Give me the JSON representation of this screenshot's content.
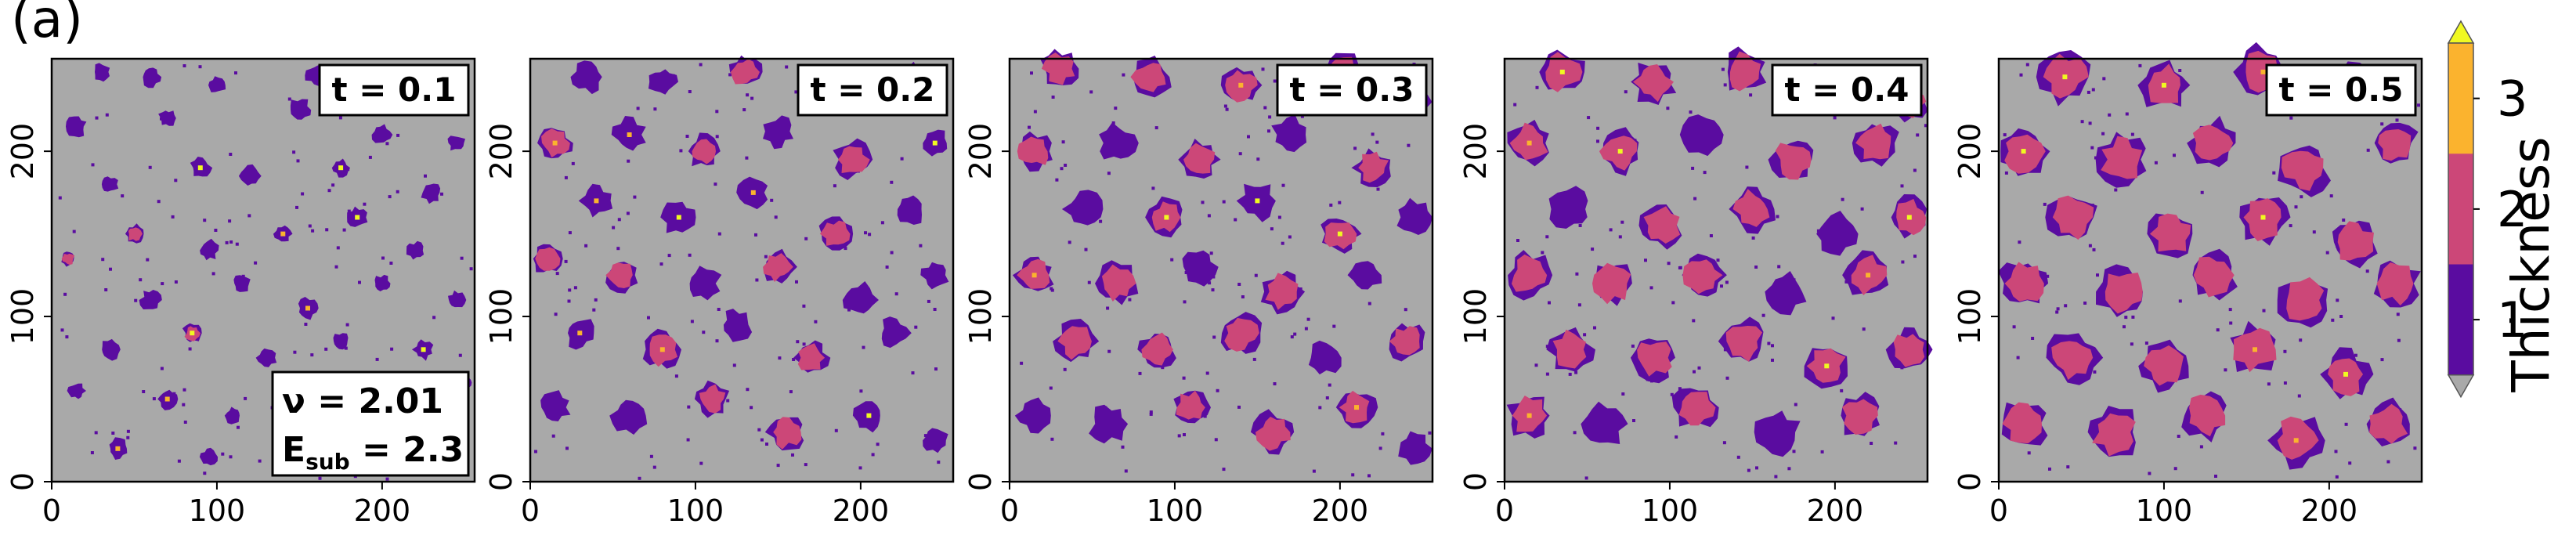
{
  "figure": {
    "panel_label": "(a)"
  },
  "chart_data": {
    "type": "heatmap",
    "description_free": true,
    "xlim": [
      0,
      256
    ],
    "ylim": [
      0,
      256
    ],
    "xticks": [
      0,
      100,
      200
    ],
    "yticks": [
      0,
      100,
      200
    ],
    "panels": [
      {
        "time_label": "t = 0.1",
        "t": 0.1,
        "annotation": {
          "nu": "ν = 2.01",
          "e_sub": "E",
          "e_sub_sub": "sub",
          "e_sub_val": " = 2.3"
        }
      },
      {
        "time_label": "t = 0.2",
        "t": 0.2
      },
      {
        "time_label": "t = 0.3",
        "t": 0.3
      },
      {
        "time_label": "t = 0.4",
        "t": 0.4
      },
      {
        "time_label": "t = 0.5",
        "t": 0.5
      }
    ],
    "colorbar": {
      "label": "Thickness",
      "ticks": [
        "1",
        "2",
        "3"
      ],
      "levels": [
        {
          "value": 0,
          "color": "#a9a9a9"
        },
        {
          "value": 1,
          "color": "#5a0ca0"
        },
        {
          "value": 2,
          "color": "#cc4778"
        },
        {
          "value": 3,
          "color": "#fbb32e"
        },
        {
          "value": 4,
          "color": "#f0f921"
        }
      ],
      "extend": "both"
    },
    "islands": {
      "0.1": [
        [
          30,
          248,
          5,
          0
        ],
        [
          60,
          245,
          6,
          0
        ],
        [
          100,
          240,
          5,
          0
        ],
        [
          160,
          246,
          6,
          0
        ],
        [
          220,
          240,
          5,
          0
        ],
        [
          15,
          215,
          6,
          0
        ],
        [
          70,
          220,
          5,
          0
        ],
        [
          90,
          190,
          6,
          0
        ],
        [
          150,
          225,
          7,
          0
        ],
        [
          200,
          210,
          6,
          0
        ],
        [
          245,
          205,
          5,
          0
        ],
        [
          35,
          180,
          5,
          0
        ],
        [
          120,
          185,
          6,
          0
        ],
        [
          175,
          190,
          5,
          0
        ],
        [
          230,
          175,
          6,
          0
        ],
        [
          50,
          150,
          5,
          1
        ],
        [
          95,
          140,
          6,
          0
        ],
        [
          140,
          150,
          5,
          0
        ],
        [
          185,
          160,
          6,
          0
        ],
        [
          220,
          140,
          5,
          0
        ],
        [
          10,
          135,
          4,
          1
        ],
        [
          60,
          110,
          6,
          0
        ],
        [
          115,
          120,
          5,
          0
        ],
        [
          155,
          105,
          6,
          0
        ],
        [
          200,
          120,
          5,
          0
        ],
        [
          245,
          110,
          5,
          0
        ],
        [
          35,
          80,
          6,
          0
        ],
        [
          85,
          90,
          5,
          1
        ],
        [
          130,
          75,
          6,
          0
        ],
        [
          175,
          85,
          5,
          0
        ],
        [
          225,
          80,
          6,
          0
        ],
        [
          15,
          55,
          5,
          0
        ],
        [
          70,
          50,
          6,
          0
        ],
        [
          110,
          40,
          5,
          0
        ],
        [
          150,
          55,
          5,
          0
        ],
        [
          200,
          45,
          5,
          0
        ],
        [
          40,
          20,
          6,
          0
        ],
        [
          95,
          15,
          5,
          0
        ],
        [
          250,
          60,
          5,
          0
        ]
      ],
      "0.2": [
        [
          35,
          245,
          9,
          0
        ],
        [
          80,
          242,
          8,
          0
        ],
        [
          130,
          248,
          9,
          1
        ],
        [
          175,
          238,
          9,
          0
        ],
        [
          230,
          245,
          8,
          0
        ],
        [
          15,
          205,
          9,
          1
        ],
        [
          60,
          210,
          10,
          0
        ],
        [
          105,
          200,
          9,
          1
        ],
        [
          150,
          212,
          9,
          0
        ],
        [
          195,
          195,
          10,
          1
        ],
        [
          245,
          205,
          8,
          0
        ],
        [
          40,
          170,
          9,
          0
        ],
        [
          90,
          160,
          10,
          0
        ],
        [
          135,
          175,
          9,
          0
        ],
        [
          185,
          150,
          9,
          1
        ],
        [
          230,
          165,
          9,
          0
        ],
        [
          10,
          135,
          8,
          1
        ],
        [
          55,
          125,
          9,
          1
        ],
        [
          105,
          120,
          10,
          0
        ],
        [
          150,
          130,
          9,
          1
        ],
        [
          200,
          110,
          10,
          0
        ],
        [
          245,
          125,
          8,
          0
        ],
        [
          30,
          90,
          9,
          0
        ],
        [
          80,
          80,
          10,
          1
        ],
        [
          125,
          95,
          9,
          0
        ],
        [
          170,
          75,
          9,
          1
        ],
        [
          220,
          90,
          9,
          0
        ],
        [
          15,
          45,
          9,
          0
        ],
        [
          60,
          40,
          10,
          0
        ],
        [
          110,
          50,
          9,
          1
        ],
        [
          155,
          30,
          10,
          1
        ],
        [
          205,
          40,
          9,
          0
        ],
        [
          245,
          25,
          8,
          0
        ]
      ],
      "0.3": [
        [
          30,
          250,
          10,
          1
        ],
        [
          85,
          245,
          11,
          1
        ],
        [
          140,
          240,
          10,
          1
        ],
        [
          200,
          248,
          11,
          1
        ],
        [
          245,
          235,
          10,
          0
        ],
        [
          15,
          200,
          10,
          1
        ],
        [
          65,
          205,
          11,
          0
        ],
        [
          115,
          195,
          10,
          1
        ],
        [
          170,
          210,
          11,
          0
        ],
        [
          220,
          190,
          10,
          1
        ],
        [
          45,
          165,
          11,
          0
        ],
        [
          95,
          160,
          10,
          1
        ],
        [
          150,
          170,
          11,
          0
        ],
        [
          200,
          150,
          10,
          1
        ],
        [
          245,
          160,
          10,
          0
        ],
        [
          15,
          125,
          10,
          1
        ],
        [
          65,
          120,
          11,
          1
        ],
        [
          115,
          130,
          10,
          0
        ],
        [
          165,
          115,
          11,
          1
        ],
        [
          215,
          125,
          10,
          0
        ],
        [
          40,
          85,
          11,
          1
        ],
        [
          90,
          80,
          10,
          1
        ],
        [
          140,
          90,
          11,
          1
        ],
        [
          190,
          75,
          10,
          0
        ],
        [
          240,
          85,
          10,
          1
        ],
        [
          15,
          40,
          10,
          0
        ],
        [
          60,
          35,
          11,
          0
        ],
        [
          110,
          45,
          10,
          1
        ],
        [
          160,
          30,
          11,
          1
        ],
        [
          210,
          45,
          10,
          1
        ],
        [
          245,
          20,
          9,
          0
        ]
      ],
      "0.4": [
        [
          35,
          248,
          12,
          1
        ],
        [
          90,
          242,
          12,
          1
        ],
        [
          145,
          248,
          12,
          1
        ],
        [
          200,
          240,
          12,
          1
        ],
        [
          245,
          230,
          10,
          1
        ],
        [
          15,
          205,
          12,
          1
        ],
        [
          70,
          200,
          12,
          1
        ],
        [
          120,
          210,
          12,
          0
        ],
        [
          175,
          195,
          12,
          1
        ],
        [
          225,
          205,
          12,
          1
        ],
        [
          40,
          165,
          12,
          0
        ],
        [
          95,
          155,
          12,
          1
        ],
        [
          150,
          165,
          12,
          1
        ],
        [
          200,
          150,
          12,
          0
        ],
        [
          245,
          160,
          11,
          1
        ],
        [
          15,
          125,
          12,
          1
        ],
        [
          65,
          120,
          12,
          1
        ],
        [
          120,
          125,
          12,
          1
        ],
        [
          170,
          115,
          12,
          0
        ],
        [
          220,
          125,
          12,
          1
        ],
        [
          40,
          80,
          12,
          1
        ],
        [
          90,
          75,
          12,
          1
        ],
        [
          145,
          85,
          12,
          1
        ],
        [
          195,
          70,
          12,
          1
        ],
        [
          245,
          80,
          11,
          1
        ],
        [
          15,
          40,
          12,
          1
        ],
        [
          60,
          35,
          13,
          0
        ],
        [
          115,
          45,
          12,
          1
        ],
        [
          165,
          30,
          13,
          0
        ],
        [
          215,
          40,
          12,
          1
        ]
      ],
      "0.5": [
        [
          40,
          245,
          14,
          1
        ],
        [
          100,
          240,
          13,
          1
        ],
        [
          160,
          248,
          14,
          1
        ],
        [
          215,
          238,
          13,
          1
        ],
        [
          15,
          200,
          13,
          1
        ],
        [
          75,
          195,
          14,
          1
        ],
        [
          130,
          205,
          13,
          1
        ],
        [
          185,
          190,
          14,
          1
        ],
        [
          240,
          205,
          12,
          1
        ],
        [
          45,
          160,
          14,
          1
        ],
        [
          105,
          150,
          13,
          1
        ],
        [
          160,
          160,
          14,
          1
        ],
        [
          215,
          145,
          13,
          1
        ],
        [
          15,
          120,
          13,
          1
        ],
        [
          75,
          115,
          14,
          1
        ],
        [
          130,
          125,
          13,
          1
        ],
        [
          185,
          110,
          14,
          1
        ],
        [
          240,
          120,
          13,
          1
        ],
        [
          45,
          75,
          14,
          1
        ],
        [
          100,
          70,
          13,
          1
        ],
        [
          155,
          80,
          14,
          1
        ],
        [
          210,
          65,
          13,
          1
        ],
        [
          15,
          35,
          13,
          1
        ],
        [
          70,
          30,
          14,
          1
        ],
        [
          125,
          40,
          13,
          1
        ],
        [
          180,
          25,
          14,
          1
        ],
        [
          235,
          35,
          13,
          1
        ]
      ]
    }
  }
}
